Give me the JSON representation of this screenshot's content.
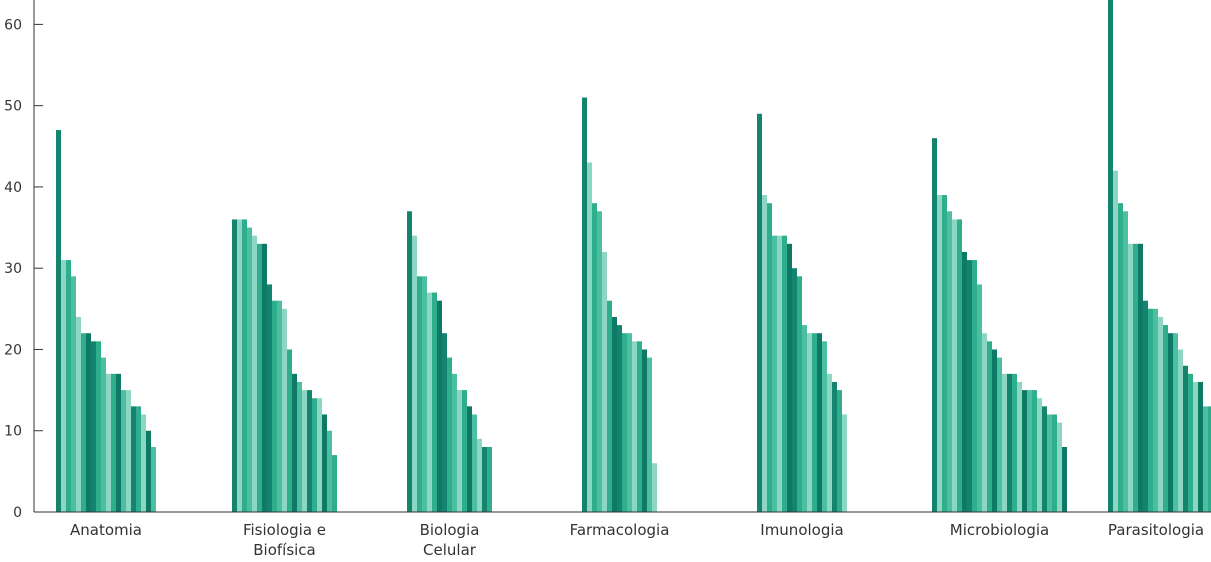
{
  "chart_data": {
    "type": "bar",
    "categories": [
      "Anatomia",
      "Fisiologia e Biofísica",
      "Biologia Celular",
      "Farmacologia",
      "Imunologia",
      "Microbiologia",
      "Parasitologia"
    ],
    "category_lines": [
      [
        "Anatomia"
      ],
      [
        "Fisiologia e",
        "Biofísica"
      ],
      [
        "Biologia",
        "Celular"
      ],
      [
        "Farmacologia"
      ],
      [
        "Imunologia"
      ],
      [
        "Microbiologia"
      ],
      [
        "Parasitologia"
      ]
    ],
    "groups": [
      [
        47,
        31,
        31,
        29,
        24,
        22,
        22,
        21,
        21,
        19,
        17,
        17,
        17,
        15,
        15,
        13,
        13,
        12,
        10,
        8
      ],
      [
        36,
        36,
        36,
        35,
        34,
        33,
        33,
        28,
        26,
        26,
        25,
        20,
        17,
        16,
        15,
        15,
        14,
        14,
        12,
        10,
        7
      ],
      [
        37,
        34,
        29,
        29,
        27,
        27,
        26,
        22,
        19,
        17,
        15,
        15,
        13,
        12,
        9,
        8,
        8
      ],
      [
        51,
        43,
        38,
        37,
        32,
        26,
        24,
        23,
        22,
        22,
        21,
        21,
        20,
        19,
        6
      ],
      [
        49,
        39,
        38,
        34,
        34,
        34,
        33,
        30,
        29,
        23,
        22,
        22,
        22,
        21,
        17,
        16,
        15,
        12
      ],
      [
        46,
        39,
        39,
        37,
        36,
        36,
        32,
        31,
        31,
        28,
        22,
        21,
        20,
        19,
        17,
        17,
        17,
        16,
        15,
        15,
        15,
        14,
        13,
        12,
        12,
        11,
        8
      ],
      [
        63,
        42,
        38,
        37,
        33,
        33,
        33,
        26,
        25,
        25,
        24,
        23,
        22,
        22,
        20,
        18,
        17,
        16,
        16,
        13,
        13
      ]
    ],
    "yticks": [
      0,
      10,
      20,
      30,
      40,
      50,
      60
    ],
    "ylim": [
      0,
      63
    ],
    "xlabel": "",
    "ylabel": "",
    "title": "",
    "grid": false,
    "colors": [
      "#14846f",
      "#8dd6c3",
      "#2fae8e",
      "#4cbfa2",
      "#0e7a66"
    ]
  }
}
